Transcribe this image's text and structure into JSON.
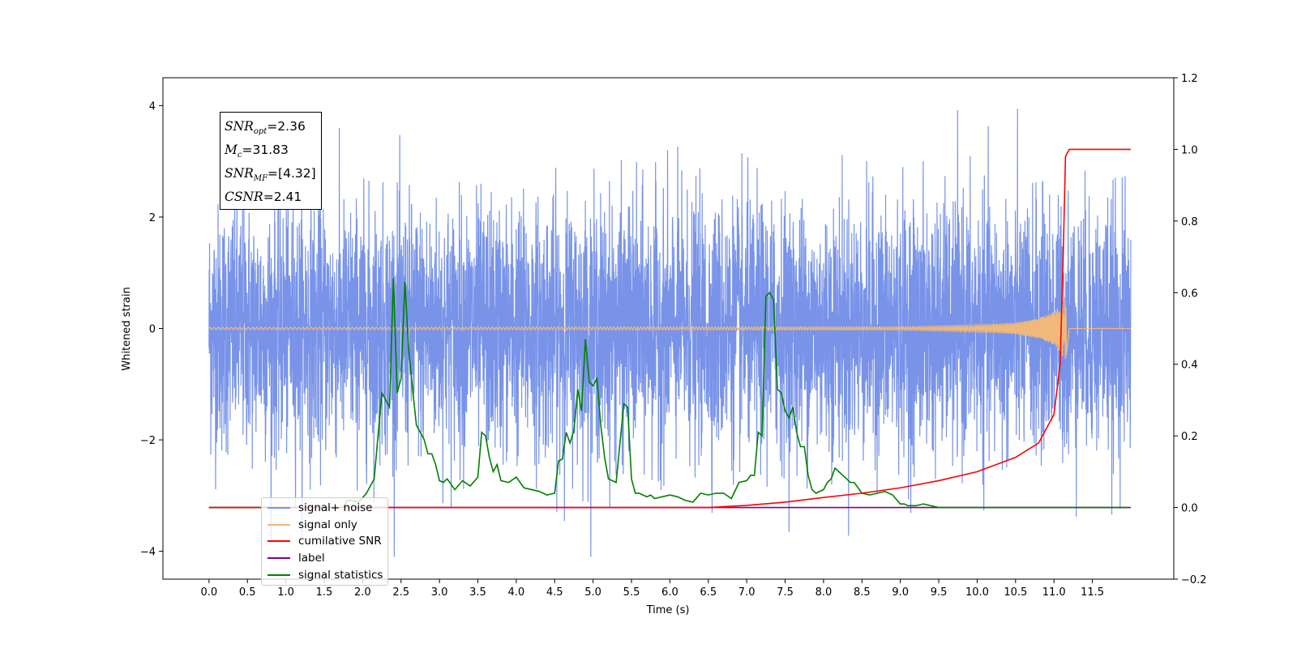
{
  "chart_data": {
    "type": "line",
    "xlabel": "Time (s)",
    "ylabel": "Whitened strain",
    "xlim": [
      -0.6,
      12.56
    ],
    "ylim": [
      -4.5,
      4.5
    ],
    "ylim_right": [
      -0.2,
      1.2
    ],
    "x_ticks": [
      "0.0",
      "0.5",
      "1.0",
      "1.5",
      "2.0",
      "2.5",
      "3.0",
      "3.5",
      "4.0",
      "4.5",
      "5.0",
      "5.5",
      "6.0",
      "6.5",
      "7.0",
      "7.5",
      "8.0",
      "8.5",
      "9.0",
      "9.5",
      "10.0",
      "10.5",
      "11.0",
      "11.5"
    ],
    "y_ticks_left": [
      "4",
      "2",
      "0",
      "−2",
      "−4"
    ],
    "y_ticks_right": [
      "1.2",
      "1.0",
      "0.8",
      "0.6",
      "0.4",
      "0.2",
      "0.0",
      "−0.2"
    ],
    "annotation": {
      "snr_opt_label": "SNR",
      "snr_opt_sub": "opt",
      "snr_opt_value": "=2.36",
      "mc_label": "M",
      "mc_sub": "c",
      "mc_value": "=31.83",
      "snr_mf_label": "SNR",
      "snr_mf_sub": "MF",
      "snr_mf_value": "=[4.32]",
      "csnr_label": "CSNR",
      "csnr_value": "=2.41"
    },
    "series": [
      {
        "name": "signal+ noise",
        "axis": "left",
        "color": "#7893e8",
        "description": "whitened noisy strain, roughly within [-3.5, 4.1] over t = 0 to 12",
        "x_range": [
          0.0,
          12.0
        ],
        "y_min": -4.1,
        "y_max": 4.1
      },
      {
        "name": "signal only",
        "axis": "left",
        "color": "#f0b87a",
        "description": "chirp signal, near zero then growing to merger",
        "x": [
          0.0,
          9.0,
          10.0,
          10.5,
          10.8,
          11.0,
          11.1,
          11.15,
          11.2
        ],
        "amplitude": [
          0.02,
          0.03,
          0.06,
          0.1,
          0.18,
          0.3,
          0.45,
          0.65,
          0.0
        ]
      },
      {
        "name": "cumilative SNR",
        "axis": "right",
        "color": "#ff0000",
        "x": [
          0.0,
          6.5,
          7.0,
          7.5,
          8.0,
          8.5,
          9.0,
          9.5,
          10.0,
          10.5,
          10.8,
          11.0,
          11.08,
          11.12,
          11.15,
          11.2,
          12.0
        ],
        "y": [
          0.0,
          0.0,
          0.006,
          0.015,
          0.028,
          0.04,
          0.055,
          0.075,
          0.1,
          0.14,
          0.18,
          0.26,
          0.4,
          0.7,
          0.98,
          1.0,
          1.0
        ]
      },
      {
        "name": "label",
        "axis": "right",
        "color": "#800080",
        "x": [
          0.0,
          12.0
        ],
        "y": [
          0.0,
          0.0
        ]
      },
      {
        "name": "signal statistics",
        "axis": "right",
        "color": "#008000",
        "x": [
          0.0,
          0.5,
          1.0,
          1.5,
          1.75,
          1.8,
          1.85,
          1.95,
          2.05,
          2.15,
          2.25,
          2.3,
          2.35,
          2.4,
          2.45,
          2.5,
          2.55,
          2.6,
          2.65,
          2.7,
          2.75,
          2.8,
          2.85,
          2.9,
          2.95,
          3.0,
          3.05,
          3.1,
          3.2,
          3.3,
          3.4,
          3.5,
          3.55,
          3.6,
          3.65,
          3.7,
          3.75,
          3.8,
          3.9,
          4.0,
          4.1,
          4.2,
          4.3,
          4.4,
          4.5,
          4.55,
          4.6,
          4.65,
          4.7,
          4.75,
          4.8,
          4.85,
          4.9,
          4.95,
          5.0,
          5.05,
          5.1,
          5.15,
          5.2,
          5.3,
          5.4,
          5.45,
          5.5,
          5.55,
          5.6,
          5.65,
          5.7,
          5.75,
          5.8,
          5.9,
          6.0,
          6.1,
          6.2,
          6.3,
          6.4,
          6.5,
          6.6,
          6.7,
          6.8,
          6.9,
          7.0,
          7.05,
          7.1,
          7.15,
          7.2,
          7.25,
          7.3,
          7.35,
          7.4,
          7.45,
          7.5,
          7.55,
          7.6,
          7.65,
          7.7,
          7.75,
          7.8,
          7.85,
          7.9,
          8.0,
          8.05,
          8.1,
          8.15,
          8.2,
          8.3,
          8.35,
          8.4,
          8.5,
          8.6,
          8.7,
          8.8,
          8.9,
          9.0,
          9.05,
          9.1,
          9.2,
          9.3,
          9.4,
          9.5,
          9.6,
          9.8,
          10.0,
          10.5,
          11.0,
          11.5,
          11.95
        ],
        "y": [
          0.0,
          0.0,
          0.0,
          0.0,
          0.0,
          0.02,
          0.02,
          0.015,
          0.04,
          0.08,
          0.32,
          0.3,
          0.28,
          0.64,
          0.32,
          0.36,
          0.63,
          0.44,
          0.33,
          0.23,
          0.21,
          0.19,
          0.15,
          0.15,
          0.12,
          0.075,
          0.07,
          0.08,
          0.05,
          0.075,
          0.06,
          0.085,
          0.21,
          0.2,
          0.14,
          0.1,
          0.12,
          0.075,
          0.07,
          0.085,
          0.055,
          0.05,
          0.045,
          0.035,
          0.04,
          0.13,
          0.135,
          0.21,
          0.18,
          0.215,
          0.33,
          0.27,
          0.47,
          0.35,
          0.34,
          0.36,
          0.23,
          0.14,
          0.08,
          0.07,
          0.29,
          0.28,
          0.08,
          0.04,
          0.04,
          0.035,
          0.03,
          0.035,
          0.025,
          0.03,
          0.035,
          0.03,
          0.02,
          0.015,
          0.04,
          0.035,
          0.04,
          0.04,
          0.025,
          0.07,
          0.075,
          0.09,
          0.09,
          0.21,
          0.2,
          0.59,
          0.6,
          0.58,
          0.33,
          0.32,
          0.27,
          0.25,
          0.28,
          0.21,
          0.17,
          0.17,
          0.09,
          0.05,
          0.04,
          0.05,
          0.07,
          0.08,
          0.11,
          0.1,
          0.08,
          0.07,
          0.07,
          0.04,
          0.035,
          0.04,
          0.045,
          0.035,
          0.01,
          0.01,
          0.005,
          0.005,
          0.01,
          0.005,
          0.0,
          0.0,
          0.0,
          0.0,
          0.0,
          0.0,
          0.0,
          0.0
        ]
      }
    ],
    "legend_position": "lower-left"
  }
}
